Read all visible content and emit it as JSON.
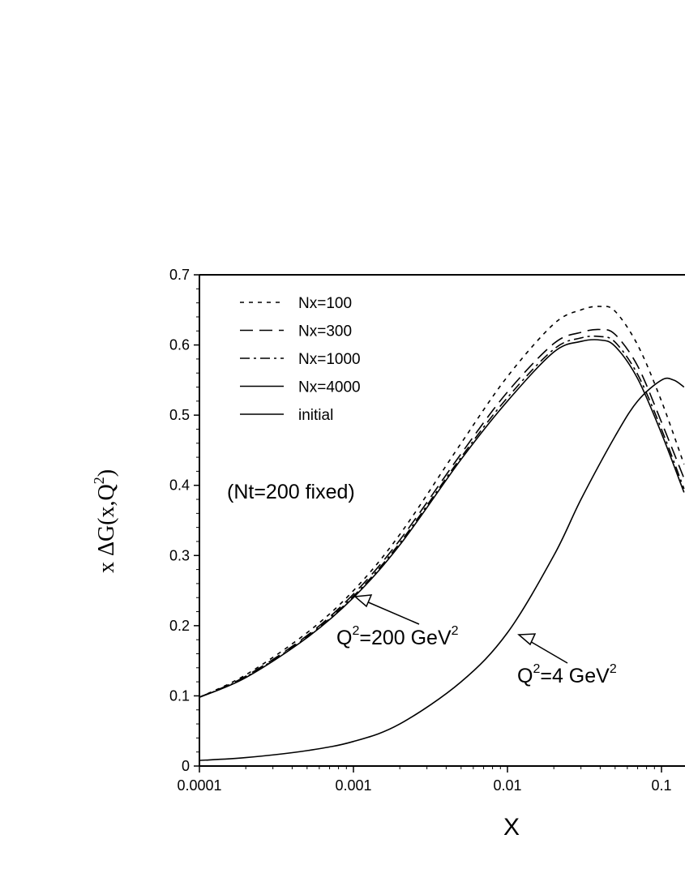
{
  "chart_data": {
    "type": "line",
    "xlabel": "X",
    "ylabel": "x ΔG(x,Q",
    "ylabel_sup": "2",
    "ylabel_close": ")",
    "x_scale": "log",
    "xlim": [
      0.0001,
      0.14
    ],
    "ylim": [
      0,
      0.7
    ],
    "x_ticks": [
      {
        "value": 0.0001,
        "label": "0.0001"
      },
      {
        "value": 0.001,
        "label": "0.001"
      },
      {
        "value": 0.01,
        "label": "0.01"
      },
      {
        "value": 0.1,
        "label": "0.1"
      }
    ],
    "y_ticks": [
      {
        "value": 0,
        "label": "0"
      },
      {
        "value": 0.1,
        "label": "0.1"
      },
      {
        "value": 0.2,
        "label": "0.2"
      },
      {
        "value": 0.3,
        "label": "0.3"
      },
      {
        "value": 0.4,
        "label": "0.4"
      },
      {
        "value": 0.5,
        "label": "0.5"
      },
      {
        "value": 0.6,
        "label": "0.6"
      },
      {
        "value": 0.7,
        "label": "0.7"
      }
    ],
    "grid": false,
    "legend_position": "top-left",
    "note": "(Nt=200 fixed)",
    "annotations": [
      {
        "text": "Q",
        "sup1": "2",
        "mid": "=200 GeV",
        "sup2": "2",
        "points_to": {
          "x": 0.001,
          "y": 0.235
        }
      },
      {
        "text": "Q",
        "sup1": "2",
        "mid": "=4 GeV",
        "sup2": "2",
        "points_to": {
          "x": 0.012,
          "y": 0.19
        }
      }
    ],
    "series": [
      {
        "name": "Nx=100",
        "dash": "dotted",
        "x": [
          0.0001,
          0.0002,
          0.0005,
          0.001,
          0.002,
          0.005,
          0.01,
          0.02,
          0.03,
          0.04,
          0.05,
          0.07,
          0.1,
          0.14
        ],
        "y": [
          0.098,
          0.13,
          0.19,
          0.25,
          0.33,
          0.46,
          0.555,
          0.63,
          0.65,
          0.655,
          0.648,
          0.6,
          0.52,
          0.43
        ]
      },
      {
        "name": "Nx=300",
        "dash": "dashed",
        "x": [
          0.0001,
          0.0002,
          0.0005,
          0.001,
          0.002,
          0.005,
          0.01,
          0.02,
          0.03,
          0.04,
          0.05,
          0.07,
          0.1,
          0.14
        ],
        "y": [
          0.098,
          0.128,
          0.186,
          0.245,
          0.322,
          0.445,
          0.533,
          0.602,
          0.618,
          0.622,
          0.615,
          0.57,
          0.49,
          0.41
        ]
      },
      {
        "name": "Nx=1000",
        "dash": "dashdot",
        "x": [
          0.0001,
          0.0002,
          0.0005,
          0.001,
          0.002,
          0.005,
          0.01,
          0.02,
          0.03,
          0.04,
          0.05,
          0.07,
          0.1,
          0.14
        ],
        "y": [
          0.098,
          0.127,
          0.184,
          0.242,
          0.318,
          0.44,
          0.525,
          0.594,
          0.61,
          0.612,
          0.604,
          0.558,
          0.48,
          0.395
        ]
      },
      {
        "name": "Nx=4000",
        "dash": "solid",
        "x": [
          0.0001,
          0.0002,
          0.0005,
          0.001,
          0.002,
          0.005,
          0.01,
          0.02,
          0.03,
          0.04,
          0.05,
          0.07,
          0.1,
          0.14
        ],
        "y": [
          0.098,
          0.126,
          0.183,
          0.24,
          0.315,
          0.437,
          0.52,
          0.59,
          0.605,
          0.607,
          0.598,
          0.552,
          0.474,
          0.39
        ]
      },
      {
        "name": "initial",
        "dash": "solid",
        "x": [
          0.0001,
          0.0002,
          0.0005,
          0.001,
          0.002,
          0.005,
          0.01,
          0.02,
          0.03,
          0.05,
          0.07,
          0.1,
          0.12,
          0.14
        ],
        "y": [
          0.008,
          0.012,
          0.022,
          0.035,
          0.06,
          0.12,
          0.19,
          0.3,
          0.38,
          0.47,
          0.52,
          0.55,
          0.55,
          0.54
        ]
      }
    ]
  }
}
